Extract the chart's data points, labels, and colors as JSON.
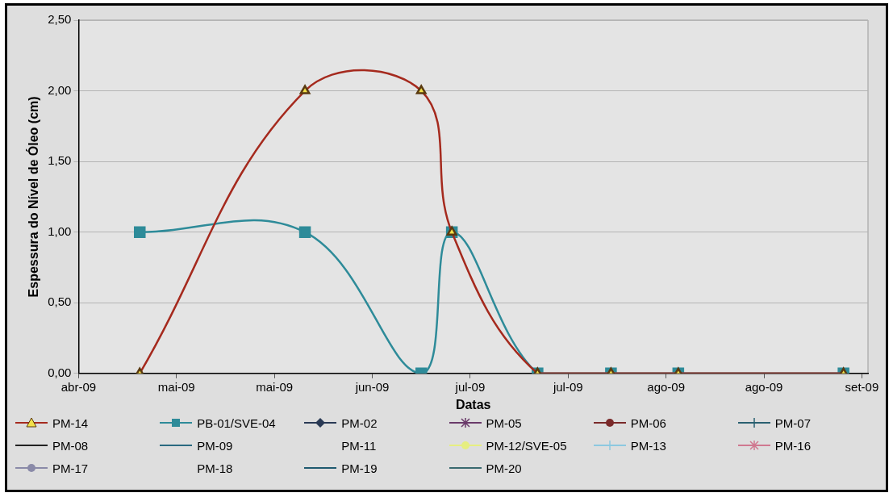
{
  "chart_data": {
    "type": "line",
    "xlabel": "Datas",
    "ylabel": "Espessura do Nível de Óleo (cm)",
    "x": [
      "2009-05-08",
      "2009-06-04",
      "2009-06-23",
      "2009-06-28",
      "2009-07-12",
      "2009-07-24",
      "2009-08-04",
      "2009-08-31"
    ],
    "xlim": [
      "2009-04-28",
      "2009-09-04"
    ],
    "xticks": [
      {
        "value": "2009-04-28",
        "label": "abr-09"
      },
      {
        "value": "2009-05-14",
        "label": "mai-09"
      },
      {
        "value": "2009-05-30",
        "label": "mai-09"
      },
      {
        "value": "2009-06-15",
        "label": "jun-09"
      },
      {
        "value": "2009-07-01",
        "label": "jul-09"
      },
      {
        "value": "2009-07-17",
        "label": "jul-09"
      },
      {
        "value": "2009-08-02",
        "label": "ago-09"
      },
      {
        "value": "2009-08-18",
        "label": "ago-09"
      },
      {
        "value": "2009-09-03",
        "label": "set-09"
      }
    ],
    "ylim": [
      0,
      2.5
    ],
    "yticks": [
      {
        "value": 0,
        "label": "0,00"
      },
      {
        "value": 0.5,
        "label": "0,50"
      },
      {
        "value": 1,
        "label": "1,00"
      },
      {
        "value": 1.5,
        "label": "1,50"
      },
      {
        "value": 2,
        "label": "2,00"
      },
      {
        "value": 2.5,
        "label": "2,50"
      }
    ],
    "grid": "y",
    "legend": "bottom",
    "series": [
      {
        "name": "PM-14",
        "color": "#a52a1e",
        "marker": "triangle",
        "values": [
          0,
          2,
          2,
          1,
          0,
          0,
          0,
          0
        ]
      },
      {
        "name": "PB-01/SVE-04",
        "color": "#2e8b99",
        "marker": "square",
        "values": [
          1,
          1,
          0,
          1,
          0,
          0,
          0,
          0
        ]
      },
      {
        "name": "PM-02",
        "color": "#2a3a55",
        "marker": "diamond",
        "values": [
          null,
          null,
          null,
          null,
          null,
          null,
          null,
          null
        ]
      },
      {
        "name": "PM-05",
        "color": "#6a3a6a",
        "marker": "star",
        "values": [
          null,
          null,
          null,
          null,
          null,
          null,
          null,
          null
        ]
      },
      {
        "name": "PM-06",
        "color": "#7a2a2a",
        "marker": "circle",
        "values": [
          null,
          null,
          null,
          null,
          null,
          null,
          null,
          null
        ]
      },
      {
        "name": "PM-07",
        "color": "#2a6070",
        "marker": "cross",
        "values": [
          null,
          null,
          null,
          null,
          null,
          null,
          null,
          null
        ]
      },
      {
        "name": "PM-08",
        "color": "#222222",
        "marker": "none",
        "values": [
          null,
          null,
          null,
          null,
          null,
          null,
          null,
          null
        ]
      },
      {
        "name": "PM-09",
        "color": "#2a6a80",
        "marker": "none",
        "values": [
          null,
          null,
          null,
          null,
          null,
          null,
          null,
          null
        ]
      },
      {
        "name": "PM-11",
        "marker": "none",
        "values": [
          null,
          null,
          null,
          null,
          null,
          null,
          null,
          null
        ]
      },
      {
        "name": "PM-12/SVE-05",
        "color": "#e6ee80",
        "marker": "circle",
        "values": [
          null,
          null,
          null,
          null,
          null,
          null,
          null,
          null
        ]
      },
      {
        "name": "PM-13",
        "color": "#8cc8e0",
        "marker": "cross",
        "values": [
          null,
          null,
          null,
          null,
          null,
          null,
          null,
          null
        ]
      },
      {
        "name": "PM-16",
        "color": "#d07890",
        "marker": "star",
        "values": [
          null,
          null,
          null,
          null,
          null,
          null,
          null,
          null
        ]
      },
      {
        "name": "PM-17",
        "color": "#8a8aa8",
        "marker": "circle",
        "values": [
          null,
          null,
          null,
          null,
          null,
          null,
          null,
          null
        ]
      },
      {
        "name": "PM-18",
        "marker": "none",
        "values": [
          null,
          null,
          null,
          null,
          null,
          null,
          null,
          null
        ]
      },
      {
        "name": "PM-19",
        "color": "#1f5a70",
        "marker": "none",
        "values": [
          null,
          null,
          null,
          null,
          null,
          null,
          null,
          null
        ]
      },
      {
        "name": "PM-20",
        "color": "#3a6a70",
        "marker": "none",
        "values": [
          null,
          null,
          null,
          null,
          null,
          null,
          null,
          null
        ]
      }
    ]
  }
}
